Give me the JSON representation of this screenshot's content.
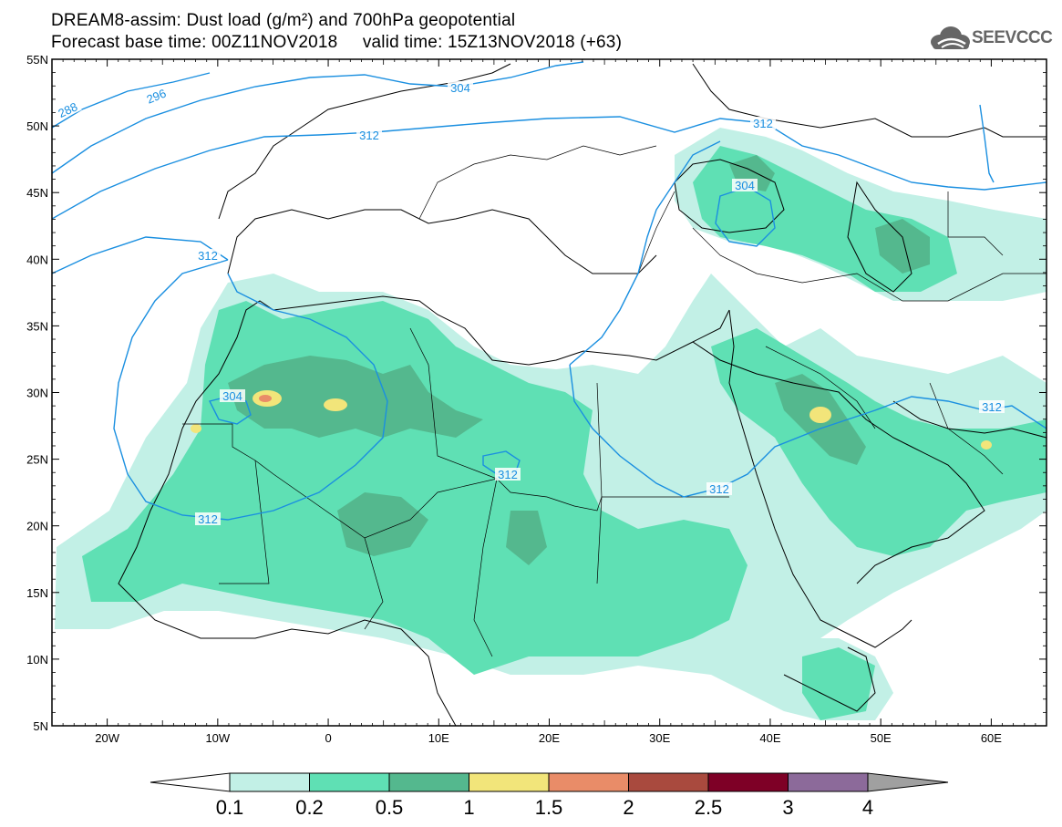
{
  "header": {
    "title_line1": "DREAM8-assim: Dust load (g/m²) and 700hPa geopotential",
    "title_line2": "Forecast base time: 00Z11NOV2018     valid time: 15Z13NOV2018 (+63)",
    "logo_text": "SEEVCCC",
    "logo_icon": "cloud-icon"
  },
  "map": {
    "lat_labels": [
      "55N",
      "50N",
      "45N",
      "40N",
      "35N",
      "30N",
      "25N",
      "20N",
      "15N",
      "10N",
      "5N"
    ],
    "lon_labels": [
      "20W",
      "10W",
      "0",
      "10E",
      "20E",
      "30E",
      "40E",
      "50E",
      "60E"
    ],
    "lat_range": [
      5,
      55
    ],
    "lon_range": [
      -25,
      65
    ],
    "contour_labels": [
      "288",
      "296",
      "304",
      "312",
      "312",
      "312",
      "304",
      "312",
      "304",
      "312",
      "312",
      "312"
    ],
    "contour_color": "#1a8fe0"
  },
  "colorbar": {
    "levels": [
      "0.1",
      "0.2",
      "0.5",
      "1",
      "1.5",
      "2",
      "2.5",
      "3",
      "4"
    ],
    "colors": [
      "#c2f0e6",
      "#5fe0b4",
      "#54b88e",
      "#f2e57a",
      "#e98c68",
      "#a94a3e",
      "#7e0026",
      "#8c6a9a",
      "#a0a0a0"
    ]
  }
}
